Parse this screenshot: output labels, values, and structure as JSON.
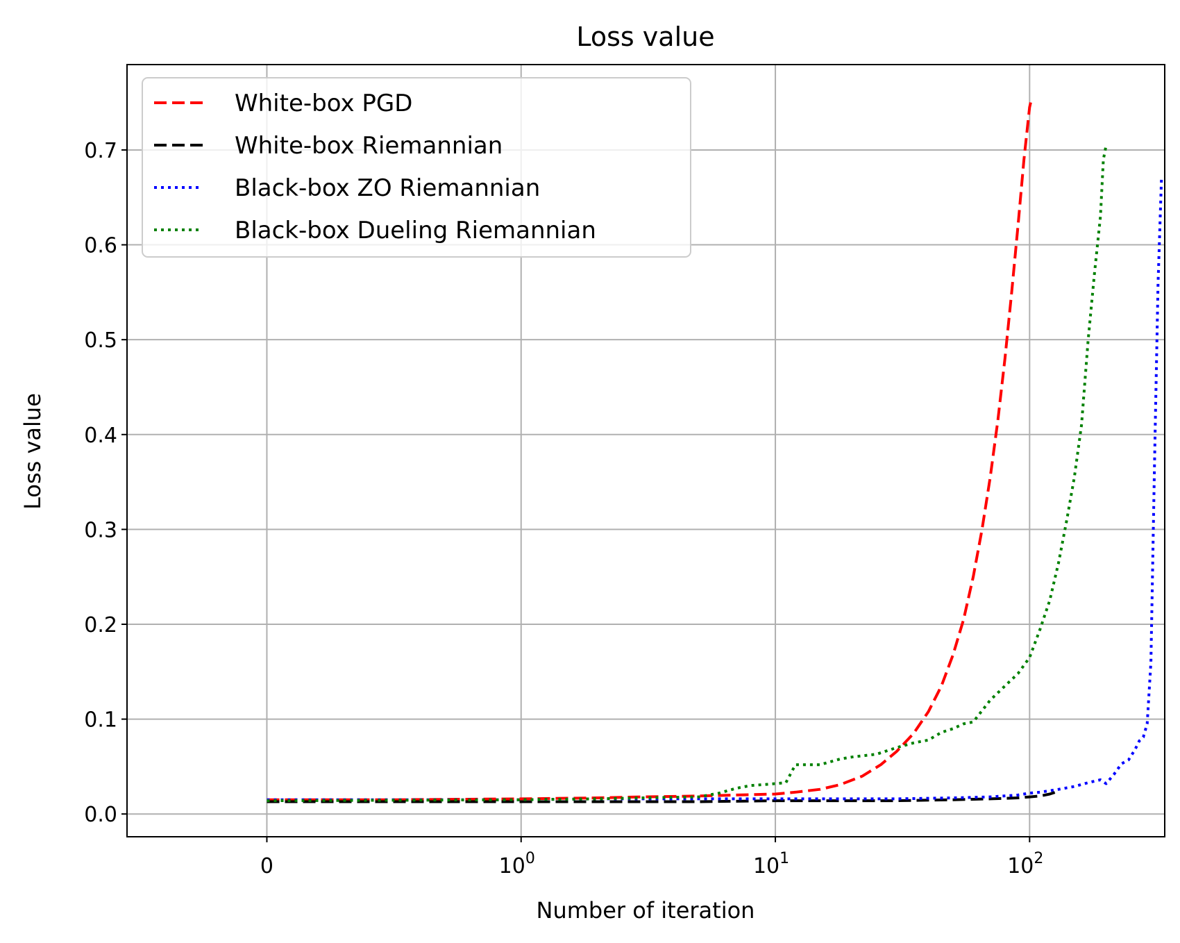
{
  "chart_data": {
    "type": "line",
    "title": "Loss value",
    "xlabel": "Number of iteration",
    "ylabel": "Loss value",
    "xscale": "symlog",
    "xlim": [
      -0.55,
      340
    ],
    "ylim": [
      -0.024,
      0.79
    ],
    "grid": true,
    "legend_position": "upper-left",
    "x_ticks": [
      {
        "value": 0,
        "label": "0",
        "exp": ""
      },
      {
        "value": 1,
        "label": "10",
        "exp": "0"
      },
      {
        "value": 10,
        "label": "10",
        "exp": "1"
      },
      {
        "value": 100,
        "label": "10",
        "exp": "2"
      }
    ],
    "y_ticks": [
      {
        "value": 0.0,
        "label": "0.0"
      },
      {
        "value": 0.1,
        "label": "0.1"
      },
      {
        "value": 0.2,
        "label": "0.2"
      },
      {
        "value": 0.3,
        "label": "0.3"
      },
      {
        "value": 0.4,
        "label": "0.4"
      },
      {
        "value": 0.5,
        "label": "0.5"
      },
      {
        "value": 0.6,
        "label": "0.6"
      },
      {
        "value": 0.7,
        "label": "0.7"
      }
    ],
    "series": [
      {
        "name": "White-box PGD",
        "color": "#ff0000",
        "style": "dashed",
        "x": [
          0,
          0.5,
          1,
          2,
          3,
          5,
          7,
          10,
          12,
          15,
          18,
          22,
          26,
          30,
          35,
          40,
          45,
          50,
          55,
          60,
          65,
          70,
          75,
          80,
          85,
          90,
          95,
          100,
          101
        ],
        "y": [
          0.015,
          0.015,
          0.016,
          0.017,
          0.018,
          0.019,
          0.02,
          0.021,
          0.023,
          0.026,
          0.031,
          0.04,
          0.052,
          0.066,
          0.085,
          0.108,
          0.135,
          0.168,
          0.205,
          0.25,
          0.3,
          0.355,
          0.415,
          0.48,
          0.55,
          0.62,
          0.69,
          0.745,
          0.75
        ]
      },
      {
        "name": "White-box Riemannian",
        "color": "#000000",
        "style": "dashed",
        "x": [
          0,
          1,
          2,
          5,
          10,
          20,
          30,
          50,
          70,
          90,
          100,
          110,
          120,
          130
        ],
        "y": [
          0.013,
          0.013,
          0.013,
          0.013,
          0.014,
          0.014,
          0.014,
          0.015,
          0.016,
          0.017,
          0.018,
          0.019,
          0.021,
          0.024
        ]
      },
      {
        "name": "Black-box ZO Riemannian",
        "color": "#0000ff",
        "style": "dotted",
        "x": [
          0,
          1,
          2,
          5,
          10,
          20,
          30,
          50,
          70,
          90,
          100,
          110,
          130,
          150,
          170,
          190,
          200,
          215,
          230,
          245,
          260,
          270,
          280,
          290,
          300,
          310,
          320,
          330
        ],
        "y": [
          0.015,
          0.015,
          0.016,
          0.016,
          0.016,
          0.016,
          0.016,
          0.017,
          0.018,
          0.02,
          0.022,
          0.023,
          0.026,
          0.029,
          0.033,
          0.036,
          0.032,
          0.042,
          0.053,
          0.057,
          0.068,
          0.077,
          0.081,
          0.095,
          0.16,
          0.37,
          0.56,
          0.67
        ]
      },
      {
        "name": "Black-box Dueling Riemannian",
        "color": "#008000",
        "style": "dotted",
        "x": [
          0,
          1,
          2,
          3,
          5,
          6,
          7,
          8,
          9,
          10,
          11,
          12,
          13,
          15,
          18,
          20,
          25,
          30,
          35,
          40,
          45,
          50,
          55,
          60,
          70,
          80,
          90,
          100,
          110,
          120,
          130,
          140,
          150,
          160,
          170,
          180,
          190,
          195,
          200
        ],
        "y": [
          0.014,
          0.015,
          0.016,
          0.017,
          0.018,
          0.022,
          0.027,
          0.03,
          0.031,
          0.032,
          0.033,
          0.052,
          0.052,
          0.052,
          0.058,
          0.06,
          0.063,
          0.07,
          0.075,
          0.078,
          0.086,
          0.09,
          0.095,
          0.097,
          0.12,
          0.135,
          0.148,
          0.165,
          0.195,
          0.225,
          0.265,
          0.31,
          0.355,
          0.41,
          0.5,
          0.57,
          0.63,
          0.69,
          0.705
        ]
      }
    ]
  }
}
